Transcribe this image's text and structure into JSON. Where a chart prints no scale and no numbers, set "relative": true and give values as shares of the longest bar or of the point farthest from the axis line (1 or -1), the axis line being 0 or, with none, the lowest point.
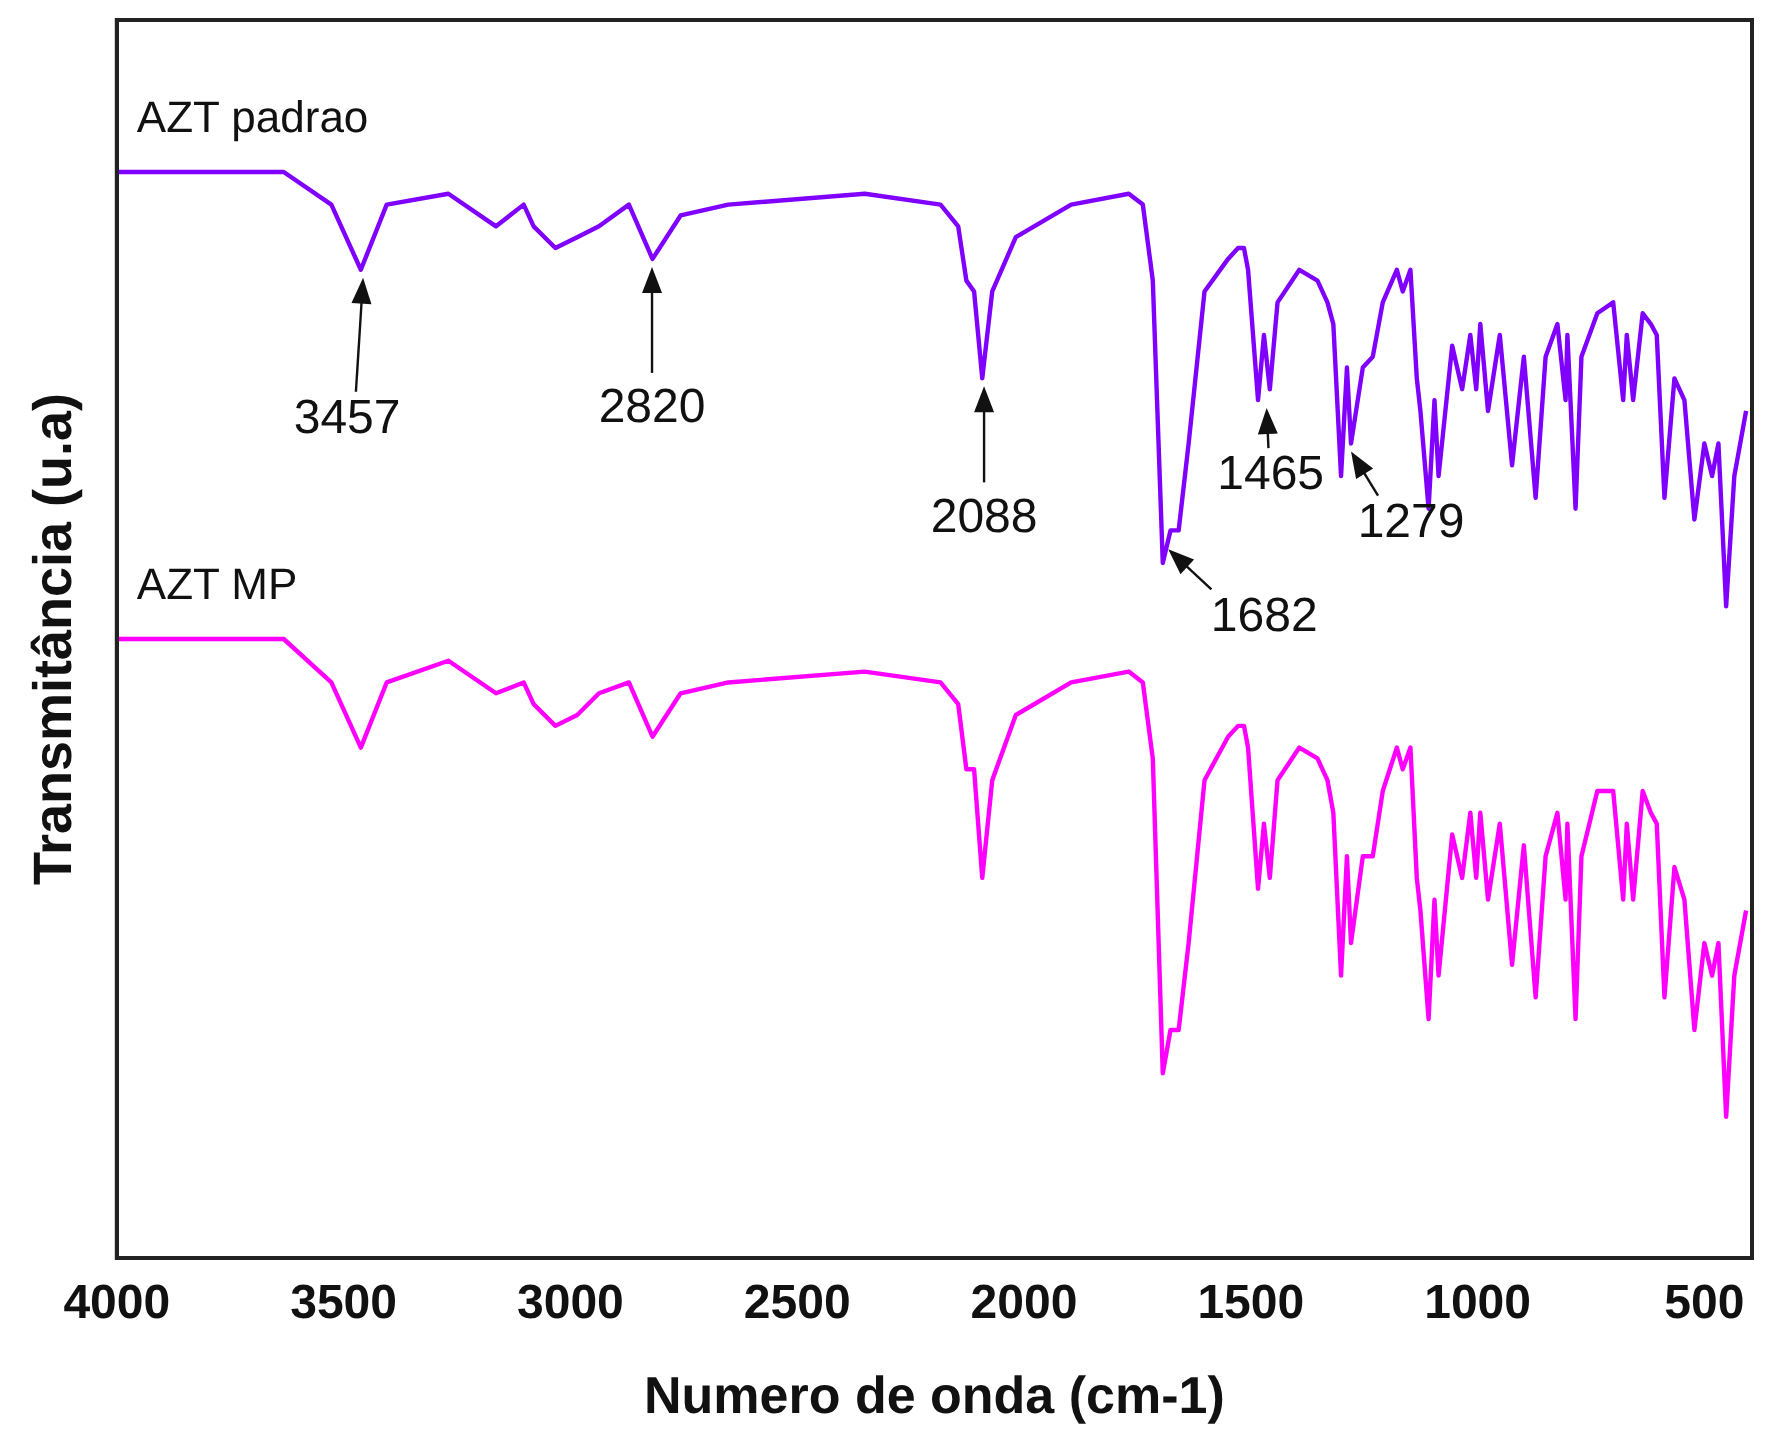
{
  "chart_data": {
    "type": "line",
    "xlabel": "Numero de onda (cm-1)",
    "ylabel": "Transmitância (u.a)",
    "relative": true,
    "xlim": [
      4000,
      395
    ],
    "xticks": [
      4000,
      3500,
      3000,
      2500,
      2000,
      1500,
      1000,
      500
    ],
    "grid": false,
    "legend": false,
    "marker": "none",
    "line_style": "solid",
    "x": [
      3996,
      3632,
      3527,
      3462,
      3405,
      3269,
      3164,
      3103,
      3081,
      3033,
      2985,
      2937,
      2871,
      2819,
      2757,
      2652,
      2351,
      2184,
      2145,
      2127,
      2110,
      2092,
      2070,
      2018,
      1896,
      1769,
      1738,
      1716,
      1694,
      1677,
      1659,
      1637,
      1602,
      1550,
      1528,
      1515,
      1506,
      1484,
      1471,
      1458,
      1441,
      1393,
      1353,
      1331,
      1318,
      1301,
      1288,
      1279,
      1253,
      1231,
      1209,
      1178,
      1165,
      1148,
      1134,
      1126,
      1108,
      1095,
      1086,
      1056,
      1034,
      1016,
      1003,
      994,
      977,
      951,
      924,
      898,
      872,
      850,
      824,
      806,
      802,
      784,
      771,
      736,
      701,
      679,
      671,
      657,
      636,
      618,
      605,
      588,
      566,
      544,
      522,
      500,
      483,
      469,
      452,
      434,
      408
    ],
    "series": [
      {
        "name": "AZT padrao",
        "color": "#7f00ff",
        "values": [
          1.0,
          1.0,
          0.97,
          0.91,
          0.97,
          0.98,
          0.95,
          0.97,
          0.95,
          0.93,
          0.94,
          0.95,
          0.97,
          0.92,
          0.96,
          0.97,
          0.98,
          0.97,
          0.95,
          0.9,
          0.89,
          0.81,
          0.89,
          0.94,
          0.97,
          0.98,
          0.97,
          0.9,
          0.64,
          0.67,
          0.67,
          0.75,
          0.89,
          0.92,
          0.93,
          0.93,
          0.91,
          0.79,
          0.85,
          0.8,
          0.88,
          0.91,
          0.9,
          0.88,
          0.86,
          0.72,
          0.82,
          0.75,
          0.82,
          0.83,
          0.88,
          0.91,
          0.89,
          0.91,
          0.81,
          0.78,
          0.69,
          0.79,
          0.72,
          0.84,
          0.8,
          0.85,
          0.8,
          0.86,
          0.78,
          0.85,
          0.73,
          0.83,
          0.7,
          0.83,
          0.86,
          0.79,
          0.85,
          0.69,
          0.83,
          0.87,
          0.88,
          0.79,
          0.85,
          0.79,
          0.87,
          0.86,
          0.85,
          0.7,
          0.81,
          0.79,
          0.68,
          0.75,
          0.72,
          0.75,
          0.6,
          0.72,
          0.78
        ]
      },
      {
        "name": "AZT MP",
        "color": "#ff00ff",
        "values": [
          0.57,
          0.57,
          0.53,
          0.47,
          0.53,
          0.55,
          0.52,
          0.53,
          0.51,
          0.49,
          0.5,
          0.52,
          0.53,
          0.48,
          0.52,
          0.53,
          0.54,
          0.53,
          0.51,
          0.45,
          0.45,
          0.35,
          0.44,
          0.5,
          0.53,
          0.54,
          0.53,
          0.46,
          0.17,
          0.21,
          0.21,
          0.29,
          0.44,
          0.48,
          0.49,
          0.49,
          0.47,
          0.34,
          0.4,
          0.35,
          0.44,
          0.47,
          0.46,
          0.44,
          0.41,
          0.26,
          0.37,
          0.29,
          0.37,
          0.37,
          0.43,
          0.47,
          0.45,
          0.47,
          0.35,
          0.32,
          0.22,
          0.33,
          0.26,
          0.39,
          0.35,
          0.41,
          0.35,
          0.41,
          0.33,
          0.4,
          0.27,
          0.38,
          0.24,
          0.37,
          0.41,
          0.33,
          0.4,
          0.22,
          0.37,
          0.43,
          0.43,
          0.33,
          0.4,
          0.33,
          0.43,
          0.41,
          0.4,
          0.24,
          0.36,
          0.33,
          0.21,
          0.29,
          0.26,
          0.29,
          0.13,
          0.26,
          0.32
        ]
      }
    ],
    "annotations": [
      {
        "text": "3457",
        "x": 3457,
        "y": 0.91
      },
      {
        "text": "2820",
        "x": 2820,
        "y": 0.92
      },
      {
        "text": "2088",
        "x": 2088,
        "y": 0.81
      },
      {
        "text": "1682",
        "x": 1682,
        "y": 0.66
      },
      {
        "text": "1465",
        "x": 1465,
        "y": 0.79
      },
      {
        "text": "1279",
        "x": 1279,
        "y": 0.75
      }
    ]
  }
}
